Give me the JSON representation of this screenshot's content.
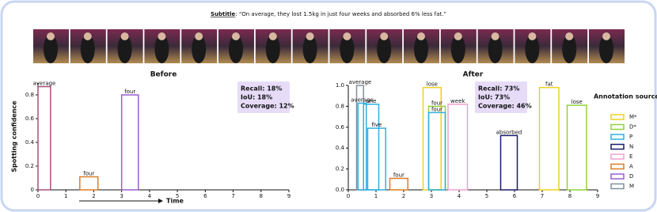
{
  "subtitle_label": "Subtitle",
  "subtitle_text": ": “On average, they lost 1.5kg in just four weeks and absorbed 6% less fat.”",
  "chart_data": [
    {
      "type": "interval",
      "title": "Before",
      "y_label": "Spotting confidence",
      "x_label": "Time",
      "xlim": [
        0,
        9
      ],
      "xticks": [
        0,
        1,
        2,
        3,
        4,
        5,
        6,
        7,
        8,
        9
      ],
      "ylim": [
        0,
        0.9
      ],
      "yticks": [
        0,
        0.2,
        0.4,
        0.6,
        0.8
      ],
      "stats": [
        "Recall: 18%",
        "IoU: 18%",
        "Coverage: 12%"
      ],
      "intervals": [
        {
          "label": "average",
          "start": 0,
          "end": 0.45,
          "value": 0.87,
          "color": "#a8507a"
        },
        {
          "label": "four",
          "start": 1.5,
          "end": 2.15,
          "value": 0.11,
          "color": "#e07b24"
        },
        {
          "label": "four",
          "start": 3.0,
          "end": 3.6,
          "value": 0.8,
          "color": "#9b5fd0"
        }
      ]
    },
    {
      "type": "interval",
      "title": "After",
      "xlim": [
        0,
        9
      ],
      "xticks": [
        0,
        1,
        2,
        3,
        4,
        5,
        6,
        7,
        8,
        9
      ],
      "ylim": [
        0,
        1.0
      ],
      "yticks": [
        {
          "value": 0,
          "label": "0.0"
        },
        0.2,
        0.4,
        0.6,
        0.8,
        {
          "value": 1,
          "label": "1.0"
        }
      ],
      "stats": [
        "Recall: 73%",
        "IoU: 73%",
        "Coverage: 46%"
      ],
      "intervals": [
        {
          "label": "average",
          "start": 0.3,
          "end": 0.55,
          "value": 1.0,
          "color": "#8090a0"
        },
        {
          "label": "average",
          "start": 0.35,
          "end": 0.65,
          "value": 0.83,
          "color": "#30b0e0"
        },
        {
          "label": "one",
          "start": 0.55,
          "end": 1.1,
          "value": 0.82,
          "color": "#30b0e0"
        },
        {
          "label": "five",
          "start": 0.7,
          "end": 1.35,
          "value": 0.59,
          "color": "#30b0e0"
        },
        {
          "label": "four",
          "start": 1.5,
          "end": 2.15,
          "value": 0.11,
          "color": "#e07b24"
        },
        {
          "label": "lose",
          "start": 2.7,
          "end": 3.35,
          "value": 0.98,
          "color": "#f0d020"
        },
        {
          "label": "four",
          "start": 2.9,
          "end": 3.5,
          "value": 0.8,
          "color": "#90d040"
        },
        {
          "label": "four",
          "start": 2.9,
          "end": 3.5,
          "value": 0.74,
          "color": "#30b0e0"
        },
        {
          "label": "week",
          "start": 3.6,
          "end": 4.3,
          "value": 0.82,
          "color": "#f0a0d0"
        },
        {
          "label": "absorbed",
          "start": 5.5,
          "end": 6.1,
          "value": 0.52,
          "color": "#1a1a70"
        },
        {
          "label": "fat",
          "start": 6.9,
          "end": 7.6,
          "value": 0.98,
          "color": "#f0d020"
        },
        {
          "label": "lose",
          "start": 7.9,
          "end": 8.6,
          "value": 0.81,
          "color": "#90d040"
        }
      ]
    }
  ],
  "legend": {
    "title": "Annotation source:",
    "items": [
      {
        "name": "M*",
        "color": "#f0d020"
      },
      {
        "name": "D*",
        "color": "#90d040"
      },
      {
        "name": "P",
        "color": "#30b0e0"
      },
      {
        "name": "N",
        "color": "#1a1a70"
      },
      {
        "name": "E",
        "color": "#f0a0d0"
      },
      {
        "name": "A",
        "color": "#e07b24"
      },
      {
        "name": "D",
        "color": "#9b5fd0"
      },
      {
        "name": "M",
        "color": "#8090a0"
      }
    ]
  }
}
